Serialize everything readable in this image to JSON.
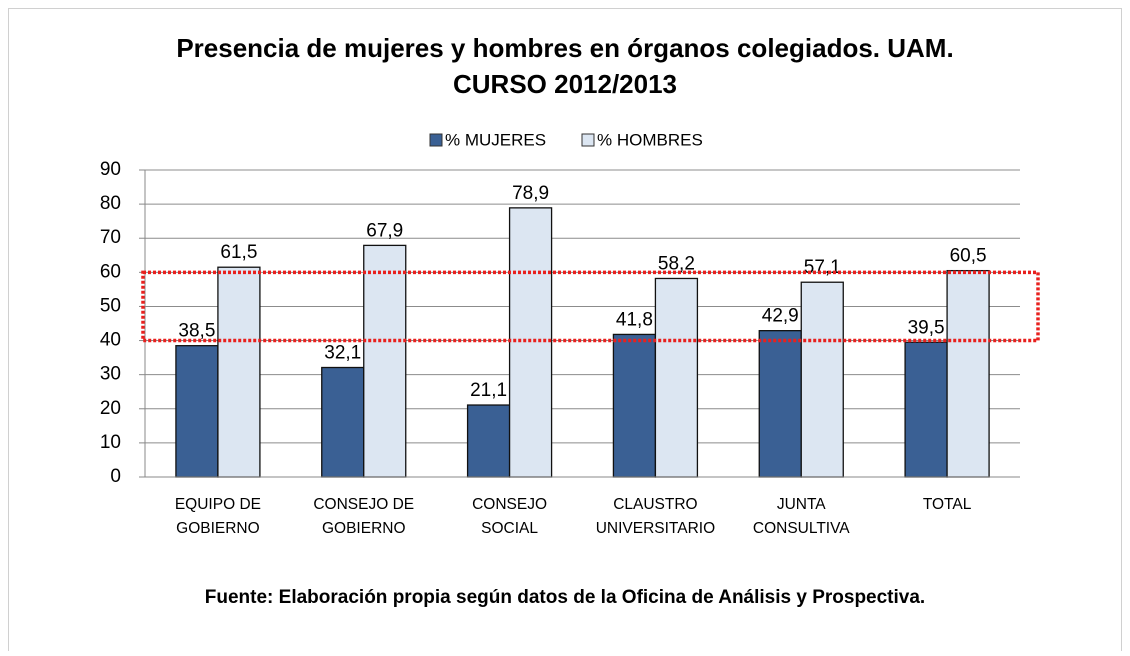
{
  "chart_data": {
    "type": "bar",
    "title": [
      "Presencia de mujeres y hombres en órganos colegiados. UAM.",
      "CURSO 2012/2013"
    ],
    "categories": [
      [
        "EQUIPO DE",
        "GOBIERNO"
      ],
      [
        "CONSEJO DE",
        "GOBIERNO"
      ],
      [
        "CONSEJO",
        "SOCIAL"
      ],
      [
        "CLAUSTRO",
        "UNIVERSITARIO"
      ],
      [
        "JUNTA",
        "CONSULTIVA"
      ],
      [
        "TOTAL"
      ]
    ],
    "series": [
      {
        "name": "% MUJERES",
        "color": "#3a6094",
        "values": [
          38.5,
          32.1,
          21.1,
          41.8,
          42.9,
          39.5
        ],
        "value_labels": [
          "38,5",
          "32,1",
          "21,1",
          "41,8",
          "42,9",
          "39,5"
        ]
      },
      {
        "name": "% HOMBRES",
        "color": "#dce6f2",
        "values": [
          61.5,
          67.9,
          78.9,
          58.2,
          57.1,
          60.5
        ],
        "value_labels": [
          "61,5",
          "67,9",
          "78,9",
          "58,2",
          "57,1",
          "60,5"
        ]
      }
    ],
    "ylim": [
      0,
      90
    ],
    "yticks": [
      0,
      10,
      20,
      30,
      40,
      50,
      60,
      70,
      80,
      90
    ],
    "grid": true,
    "legend": "top",
    "highlight_band": {
      "range": [
        40,
        60
      ],
      "color": "#e8201e"
    },
    "source": "Fuente: Elaboración propia según datos de la Oficina de Análisis y Prospectiva."
  }
}
